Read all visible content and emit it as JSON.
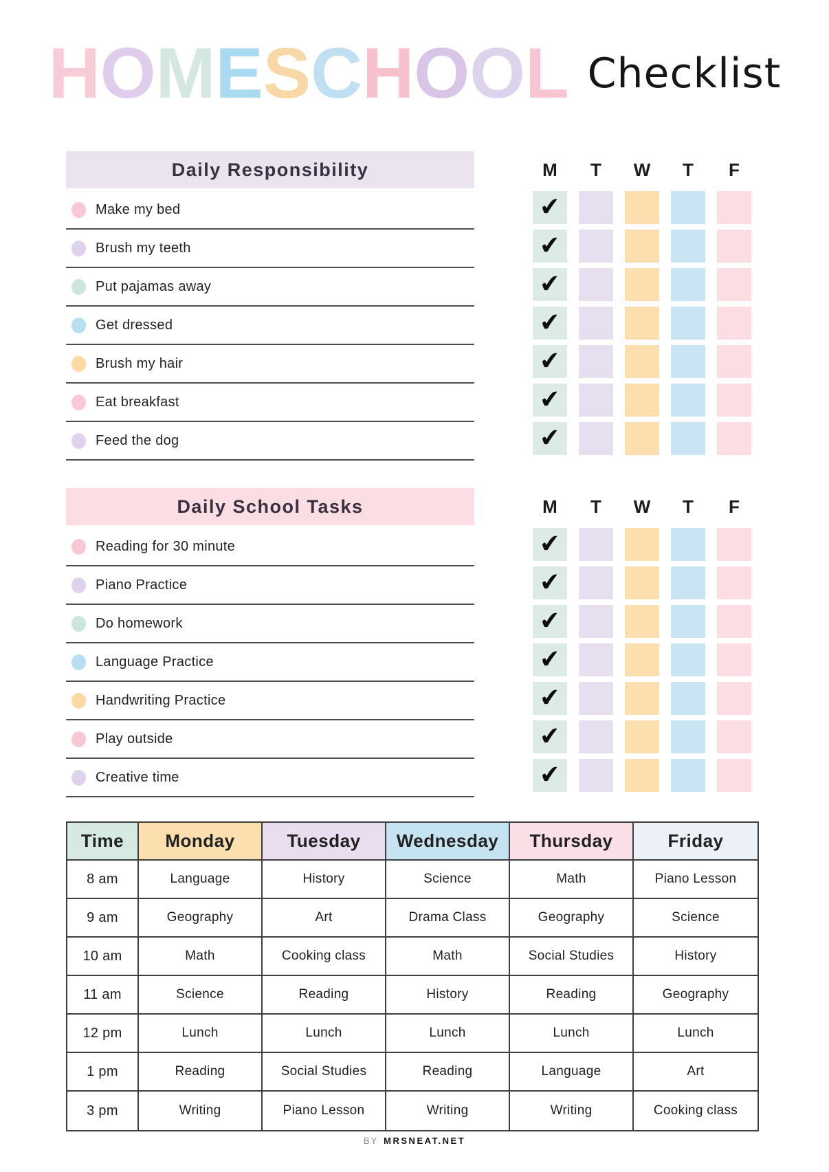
{
  "title": {
    "letters": [
      {
        "ch": "H",
        "color": "#f8ccd7"
      },
      {
        "ch": "O",
        "color": "#dfcdeb"
      },
      {
        "ch": "M",
        "color": "#d5e8df"
      },
      {
        "ch": "E",
        "color": "#aad9f2"
      },
      {
        "ch": "S",
        "color": "#f8d8a6"
      },
      {
        "ch": "C",
        "color": "#c0e0f2"
      },
      {
        "ch": "H",
        "color": "#f6c0cd"
      },
      {
        "ch": "O",
        "color": "#d9c5e7"
      },
      {
        "ch": "O",
        "color": "#ded3ec"
      },
      {
        "ch": "L",
        "color": "#f8c6d2"
      }
    ],
    "suffix": "Checklist"
  },
  "checkmark_glyph": "✔",
  "day_columns": [
    {
      "letter": "M",
      "square_color": "#dcebe5"
    },
    {
      "letter": "T",
      "square_color": "#e7dff0"
    },
    {
      "letter": "W",
      "square_color": "#fbdfae"
    },
    {
      "letter": "T",
      "square_color": "#c9e4f2"
    },
    {
      "letter": "F",
      "square_color": "#fcdde4"
    }
  ],
  "sections": [
    {
      "title": "Daily Responsibility",
      "bar_color": "#ece3f1",
      "tasks": [
        {
          "label": "Make my bed",
          "dot_color": "#f8c9d4",
          "checked_days": [
            true,
            false,
            false,
            false,
            false
          ]
        },
        {
          "label": "Brush my teeth",
          "dot_color": "#ded2ec",
          "checked_days": [
            true,
            false,
            false,
            false,
            false
          ]
        },
        {
          "label": "Put pajamas away",
          "dot_color": "#cde6dc",
          "checked_days": [
            true,
            false,
            false,
            false,
            false
          ]
        },
        {
          "label": "Get dressed",
          "dot_color": "#b8def1",
          "checked_days": [
            true,
            false,
            false,
            false,
            false
          ]
        },
        {
          "label": "Brush my hair",
          "dot_color": "#fbd9a5",
          "checked_days": [
            true,
            false,
            false,
            false,
            false
          ]
        },
        {
          "label": "Eat breakfast",
          "dot_color": "#f8c9d4",
          "checked_days": [
            true,
            false,
            false,
            false,
            false
          ]
        },
        {
          "label": "Feed the dog",
          "dot_color": "#ded2ec",
          "checked_days": [
            true,
            false,
            false,
            false,
            false
          ]
        }
      ]
    },
    {
      "title": "Daily School Tasks",
      "bar_color": "#fbdde4",
      "tasks": [
        {
          "label": "Reading for 30 minute",
          "dot_color": "#f8c9d4",
          "checked_days": [
            true,
            false,
            false,
            false,
            false
          ]
        },
        {
          "label": "Piano Practice",
          "dot_color": "#ded2ec",
          "checked_days": [
            true,
            false,
            false,
            false,
            false
          ]
        },
        {
          "label": "Do homework",
          "dot_color": "#cde6dc",
          "checked_days": [
            true,
            false,
            false,
            false,
            false
          ]
        },
        {
          "label": "Language Practice",
          "dot_color": "#b8def1",
          "checked_days": [
            true,
            false,
            false,
            false,
            false
          ]
        },
        {
          "label": "Handwriting Practice",
          "dot_color": "#fbd9a5",
          "checked_days": [
            true,
            false,
            false,
            false,
            false
          ]
        },
        {
          "label": "Play outside",
          "dot_color": "#f8c9d4",
          "checked_days": [
            true,
            false,
            false,
            false,
            false
          ]
        },
        {
          "label": "Creative time",
          "dot_color": "#ded2ec",
          "checked_days": [
            true,
            false,
            false,
            false,
            false
          ]
        }
      ]
    }
  ],
  "schedule": {
    "headers": [
      {
        "label": "Time",
        "color": "#d7eae2"
      },
      {
        "label": "Monday",
        "color": "#fbdfae"
      },
      {
        "label": "Tuesday",
        "color": "#e9ddf0"
      },
      {
        "label": "Wednesday",
        "color": "#c5e3f1"
      },
      {
        "label": "Thursday",
        "color": "#fbdfe6"
      },
      {
        "label": "Friday",
        "color": "#ecf1f7"
      }
    ],
    "rows": [
      {
        "time": "8 am",
        "cells": [
          "Language",
          "History",
          "Science",
          "Math",
          "Piano Lesson"
        ]
      },
      {
        "time": "9 am",
        "cells": [
          "Geography",
          "Art",
          "Drama Class",
          "Geography",
          "Science"
        ]
      },
      {
        "time": "10 am",
        "cells": [
          "Math",
          "Cooking class",
          "Math",
          "Social Studies",
          "History"
        ]
      },
      {
        "time": "11 am",
        "cells": [
          "Science",
          "Reading",
          "History",
          "Reading",
          "Geography"
        ]
      },
      {
        "time": "12 pm",
        "cells": [
          "Lunch",
          "Lunch",
          "Lunch",
          "Lunch",
          "Lunch"
        ]
      },
      {
        "time": "1 pm",
        "cells": [
          "Reading",
          "Social Studies",
          "Reading",
          "Language",
          "Art"
        ]
      },
      {
        "time": "3 pm",
        "cells": [
          "Writing",
          "Piano Lesson",
          "Writing",
          "Writing",
          "Cooking class"
        ]
      }
    ]
  },
  "footer": {
    "prefix": "BY",
    "site": "MRSNEAT.NET"
  }
}
